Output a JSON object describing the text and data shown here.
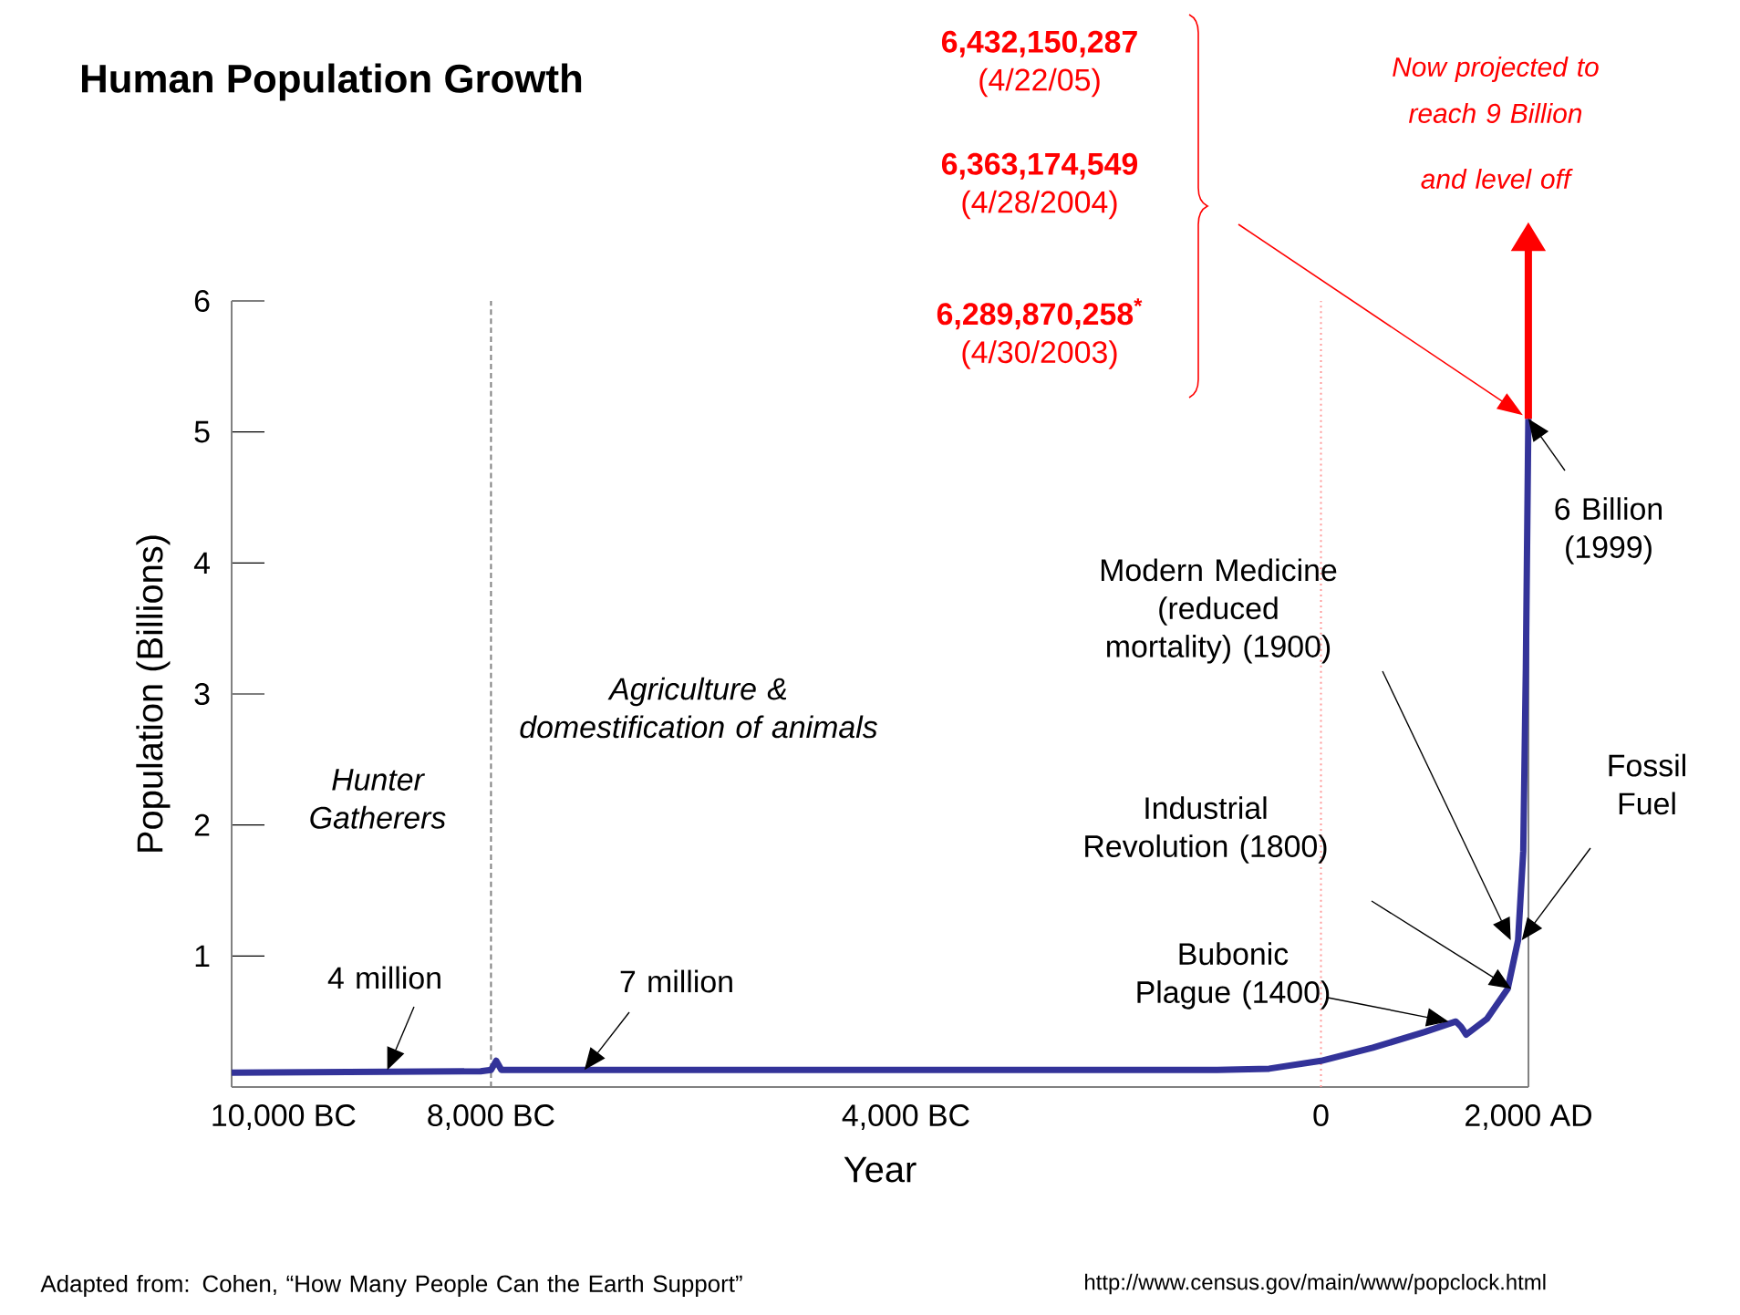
{
  "chart_data": {
    "type": "line",
    "title": "Human Population Growth",
    "xlabel": "Year",
    "ylabel": "Population (Billions)",
    "x": [
      -10500,
      -8100,
      -8000,
      -7950,
      -7900,
      -4000,
      -1000,
      -500,
      0,
      500,
      1000,
      1300,
      1350,
      1400,
      1600,
      1800,
      1900,
      1950,
      1975,
      1999
    ],
    "series": [
      {
        "color": "#333399",
        "values": [
          0.11,
          0.12,
          0.13,
          0.2,
          0.13,
          0.13,
          0.13,
          0.14,
          0.2,
          0.3,
          0.42,
          0.5,
          0.46,
          0.4,
          0.52,
          0.75,
          1.12,
          1.8,
          3.2,
          5.1
        ]
      }
    ],
    "xlim": [
      -10500,
      2000
    ],
    "ylim": [
      0,
      6
    ],
    "xticks": [
      {
        "value": -10000,
        "label": "10,000 BC"
      },
      {
        "value": -8000,
        "label": "8,000 BC"
      },
      {
        "value": -4000,
        "label": "4,000 BC"
      },
      0,
      {
        "value": 2000,
        "label": "2,000 AD"
      }
    ],
    "yticks": [
      1,
      2,
      3,
      4,
      5,
      6
    ],
    "ref_lines": [
      {
        "axis": "x",
        "value": -8000,
        "color": "#808080",
        "line_style": "dashed"
      },
      {
        "axis": "x",
        "value": 0,
        "color": "#ff9999",
        "line_style": "dotted"
      },
      {
        "axis": "x",
        "value": 2000,
        "color": "#808080",
        "line_style": "solid"
      }
    ],
    "annotations": [
      "Hunter Gatherers",
      "Agriculture & domestification of animals",
      {
        "text": "4 million",
        "x": -9000,
        "y": 0.13
      },
      {
        "text": "7 million",
        "x": -7100,
        "y": 0.13
      },
      "Bubonic Plague (1400)",
      "Industrial Revolution (1800)",
      "Modern Medicine (reduced mortality) (1900)",
      "Fossil Fuel",
      {
        "text": "6 Billion (1999)",
        "x": 1999,
        "y": 5.1
      },
      "**6,432,150,287** (4/22/05)",
      "**6,363,174,549** (4/28/2004)",
      "**6,289,870,258$^{*}$** (4/30/2003)",
      "Now projected to",
      "reach 9 Billion",
      "and level off",
      "Adapted from: Cohen, “How Many People Can the Earth Support”",
      "http://www.census.gov/main/www/popclock.html"
    ]
  }
}
